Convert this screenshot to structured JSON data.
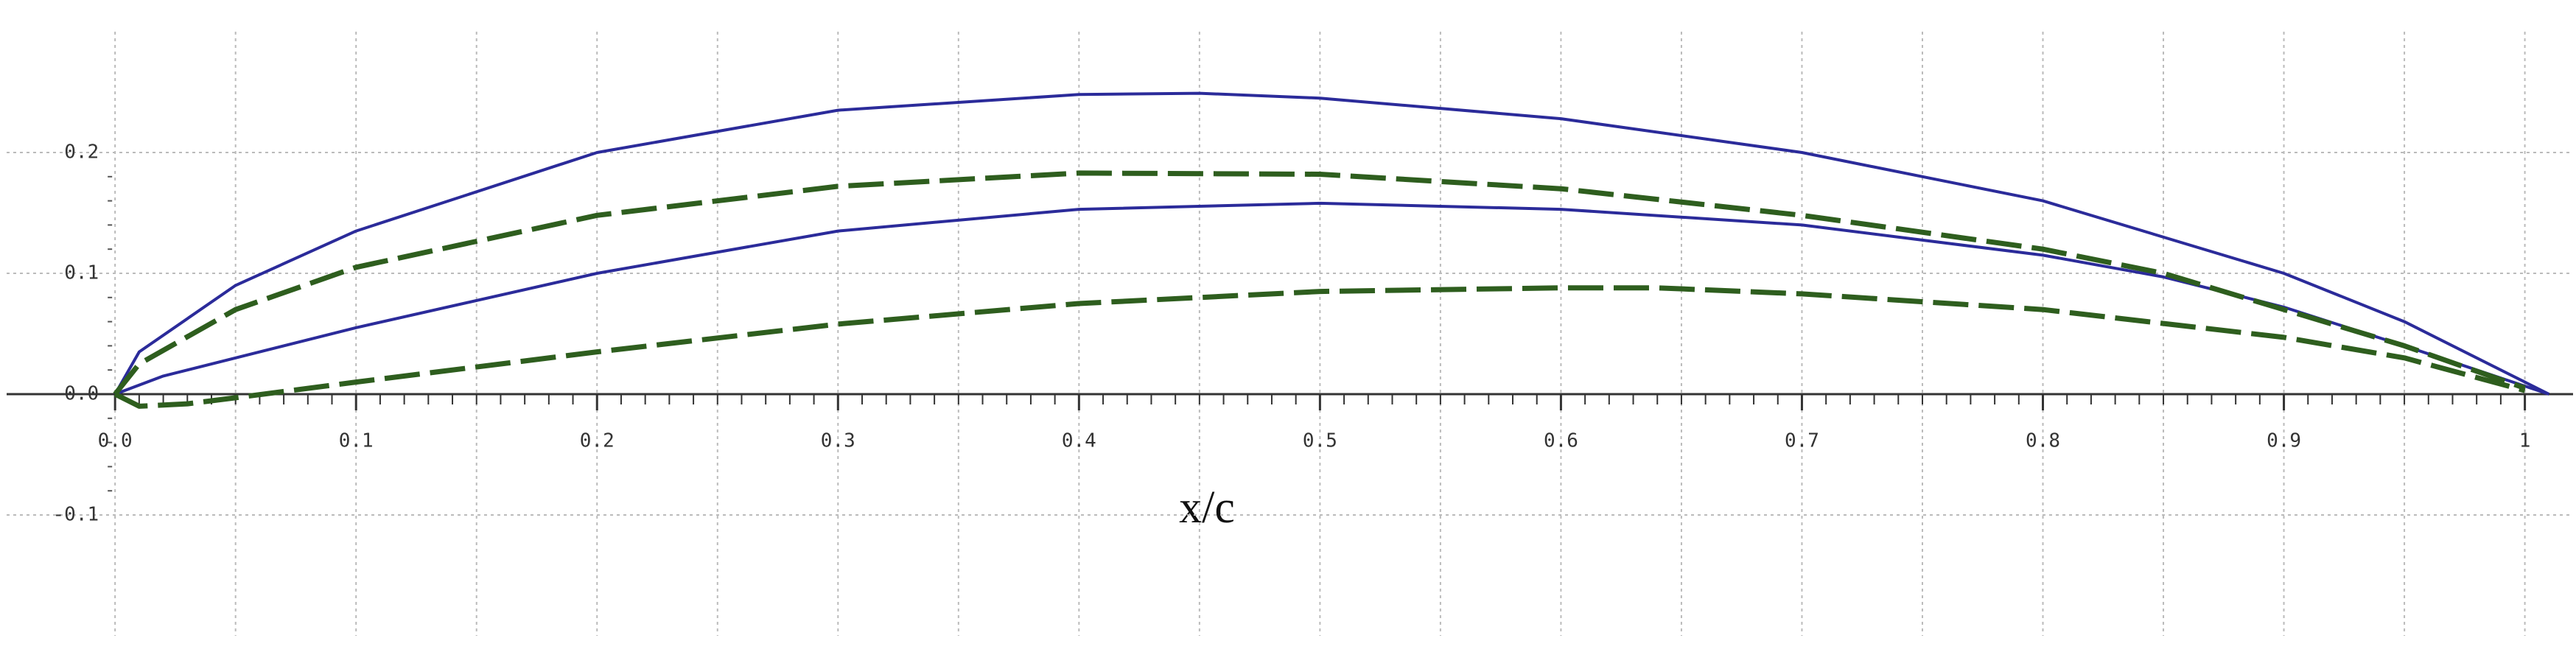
{
  "chart_data": {
    "type": "line",
    "xlabel": "x/c",
    "xlim": [
      -0.045,
      1.02
    ],
    "ylim": [
      -0.2,
      0.3
    ],
    "xticks": [
      {
        "value": 0,
        "label": "0.0"
      },
      0.1,
      0.2,
      0.3,
      0.4,
      0.5,
      0.6,
      0.7,
      0.8,
      0.9,
      1
    ],
    "yticks": [
      -0.1,
      {
        "value": 0,
        "label": "0.0"
      },
      0.1,
      0.2
    ],
    "grid": true,
    "series": [
      {
        "color": "#2b2b9a",
        "dashed": false,
        "x": [
          0,
          0.01,
          0.05,
          0.1,
          0.2,
          0.3,
          0.4,
          0.45,
          0.5,
          0.6,
          0.7,
          0.8,
          0.9,
          0.95,
          1.0,
          1.01
        ],
        "values": [
          0,
          0.035,
          0.09,
          0.135,
          0.2,
          0.235,
          0.248,
          0.249,
          0.245,
          0.228,
          0.2,
          0.16,
          0.1,
          0.06,
          0.01,
          0
        ]
      },
      {
        "color": "#2b2b9a",
        "dashed": false,
        "x": [
          0,
          0.02,
          0.05,
          0.1,
          0.2,
          0.3,
          0.4,
          0.5,
          0.6,
          0.7,
          0.8,
          0.85,
          0.9,
          0.95,
          1.01
        ],
        "values": [
          0,
          0.015,
          0.03,
          0.055,
          0.1,
          0.135,
          0.153,
          0.158,
          0.153,
          0.14,
          0.115,
          0.097,
          0.072,
          0.04,
          0
        ]
      },
      {
        "color": "#2e5e1e",
        "dashed": true,
        "x": [
          0,
          0.01,
          0.05,
          0.1,
          0.2,
          0.3,
          0.4,
          0.5,
          0.6,
          0.7,
          0.8,
          0.85,
          0.9,
          0.95,
          1.0
        ],
        "values": [
          0,
          0.025,
          0.07,
          0.105,
          0.148,
          0.172,
          0.183,
          0.182,
          0.17,
          0.148,
          0.12,
          0.1,
          0.07,
          0.04,
          0.005
        ]
      },
      {
        "color": "#2e5e1e",
        "dashed": true,
        "x": [
          0,
          0.01,
          0.03,
          0.05,
          0.1,
          0.2,
          0.3,
          0.4,
          0.5,
          0.6,
          0.64,
          0.7,
          0.8,
          0.9,
          0.95,
          1.0
        ],
        "values": [
          0,
          -0.01,
          -0.008,
          -0.003,
          0.01,
          0.035,
          0.058,
          0.075,
          0.085,
          0.088,
          0.088,
          0.083,
          0.07,
          0.047,
          0.03,
          0.003
        ]
      }
    ]
  }
}
